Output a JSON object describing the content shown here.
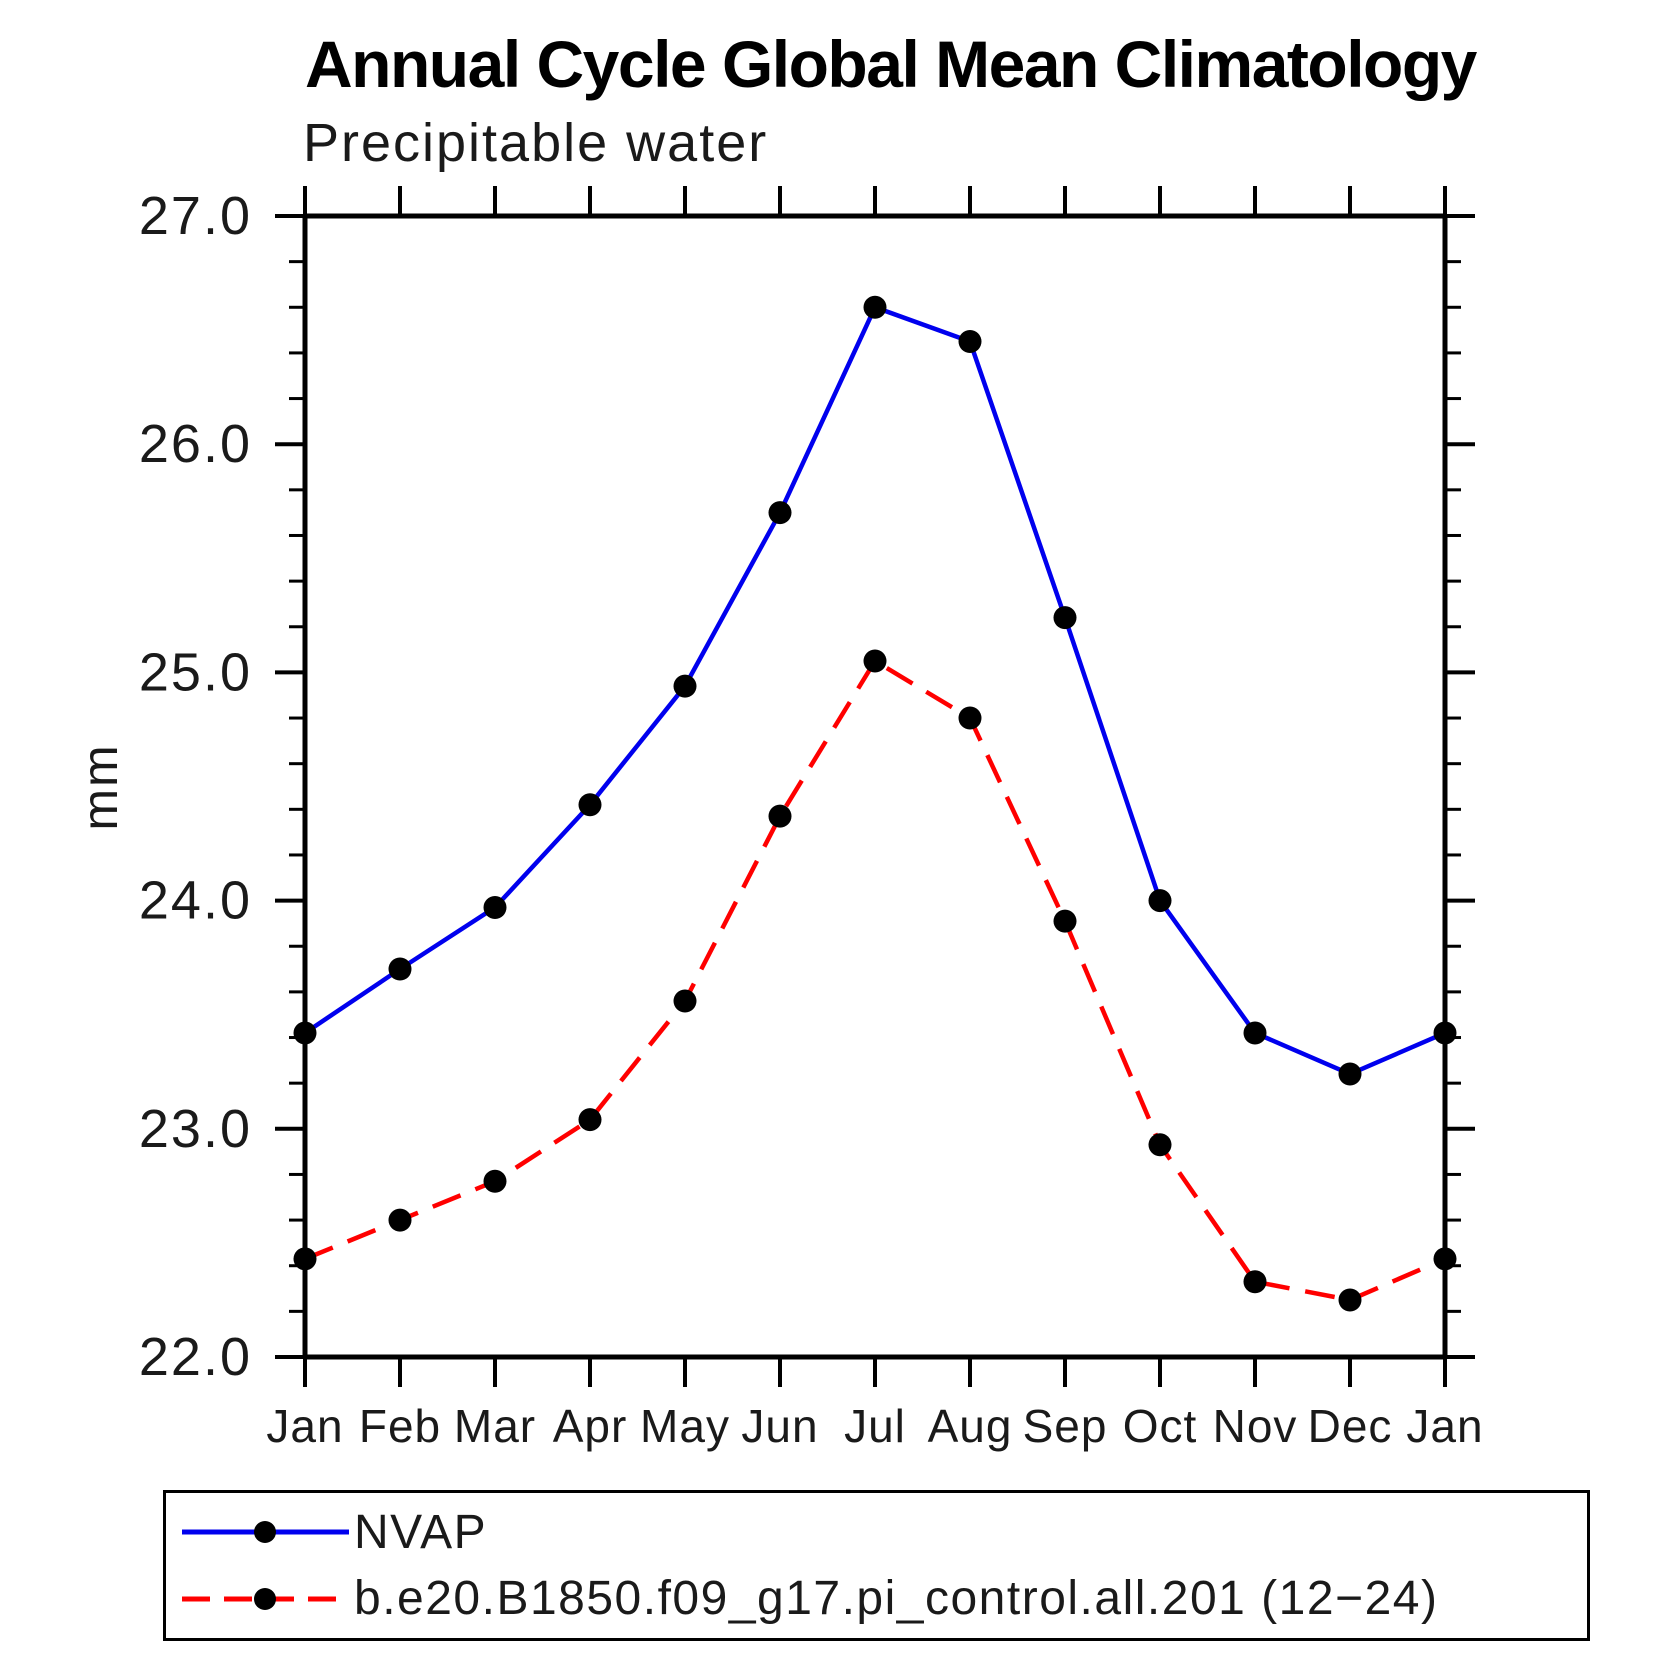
{
  "chart_data": {
    "type": "line",
    "title": "Annual Cycle Global Mean Climatology",
    "subtitle": "Precipitable water",
    "ylabel": "mm",
    "xlabel": "",
    "ylim": [
      22.0,
      27.0
    ],
    "ytick_major_interval": 1.0,
    "ytick_minor_interval": 0.2,
    "ytick_labels": [
      "22.0",
      "23.0",
      "24.0",
      "25.0",
      "26.0",
      "27.0"
    ],
    "grid": false,
    "legend_position": "bottom",
    "categories": [
      "Jan",
      "Feb",
      "Mar",
      "Apr",
      "May",
      "Jun",
      "Jul",
      "Aug",
      "Sep",
      "Oct",
      "Nov",
      "Dec",
      "Jan"
    ],
    "series": [
      {
        "name": "NVAP",
        "color": "#0000ee",
        "line_style": "solid",
        "marker": "circle",
        "marker_color": "#000000",
        "values": [
          23.42,
          23.7,
          23.97,
          24.42,
          24.94,
          25.7,
          26.6,
          26.45,
          25.24,
          24.0,
          23.42,
          23.24,
          23.42
        ]
      },
      {
        "name": "b.e20.B1850.f09_g17.pi_control.all.201 (12−24)",
        "color": "#ff0000",
        "line_style": "dashed",
        "marker": "circle",
        "marker_color": "#000000",
        "values": [
          22.43,
          22.6,
          22.77,
          23.04,
          23.56,
          24.37,
          25.05,
          24.8,
          23.91,
          22.93,
          22.33,
          22.25,
          22.43
        ]
      }
    ]
  }
}
